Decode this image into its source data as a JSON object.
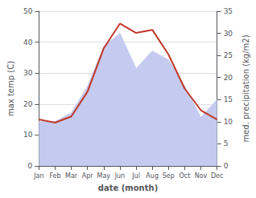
{
  "chart_data": {
    "type": "line",
    "xlabel": "date (month)",
    "ylabel": "max temp (C)",
    "y2label": "med. precipitation (kg/m2)",
    "categories": [
      "Jan",
      "Feb",
      "Mar",
      "Apr",
      "May",
      "Jun",
      "Jul",
      "Aug",
      "Sep",
      "Oct",
      "Nov",
      "Dec"
    ],
    "series": [
      {
        "type": "area",
        "axis": "y2",
        "color": "#c5caf0",
        "values": [
          10,
          10,
          12,
          18,
          27,
          30,
          22,
          26,
          24,
          18,
          11,
          15
        ]
      },
      {
        "type": "line",
        "color": "#c0392b",
        "values": [
          15,
          14,
          16,
          24,
          38,
          46,
          43,
          44,
          36,
          25,
          18,
          15
        ]
      }
    ],
    "ylim": [
      0,
      50
    ],
    "yticks": [
      0,
      10,
      20,
      30,
      40,
      50
    ],
    "y2lim": [
      0,
      35
    ],
    "y2ticks": [
      0,
      5,
      10,
      15,
      20,
      25,
      30,
      35
    ],
    "grid": true
  }
}
